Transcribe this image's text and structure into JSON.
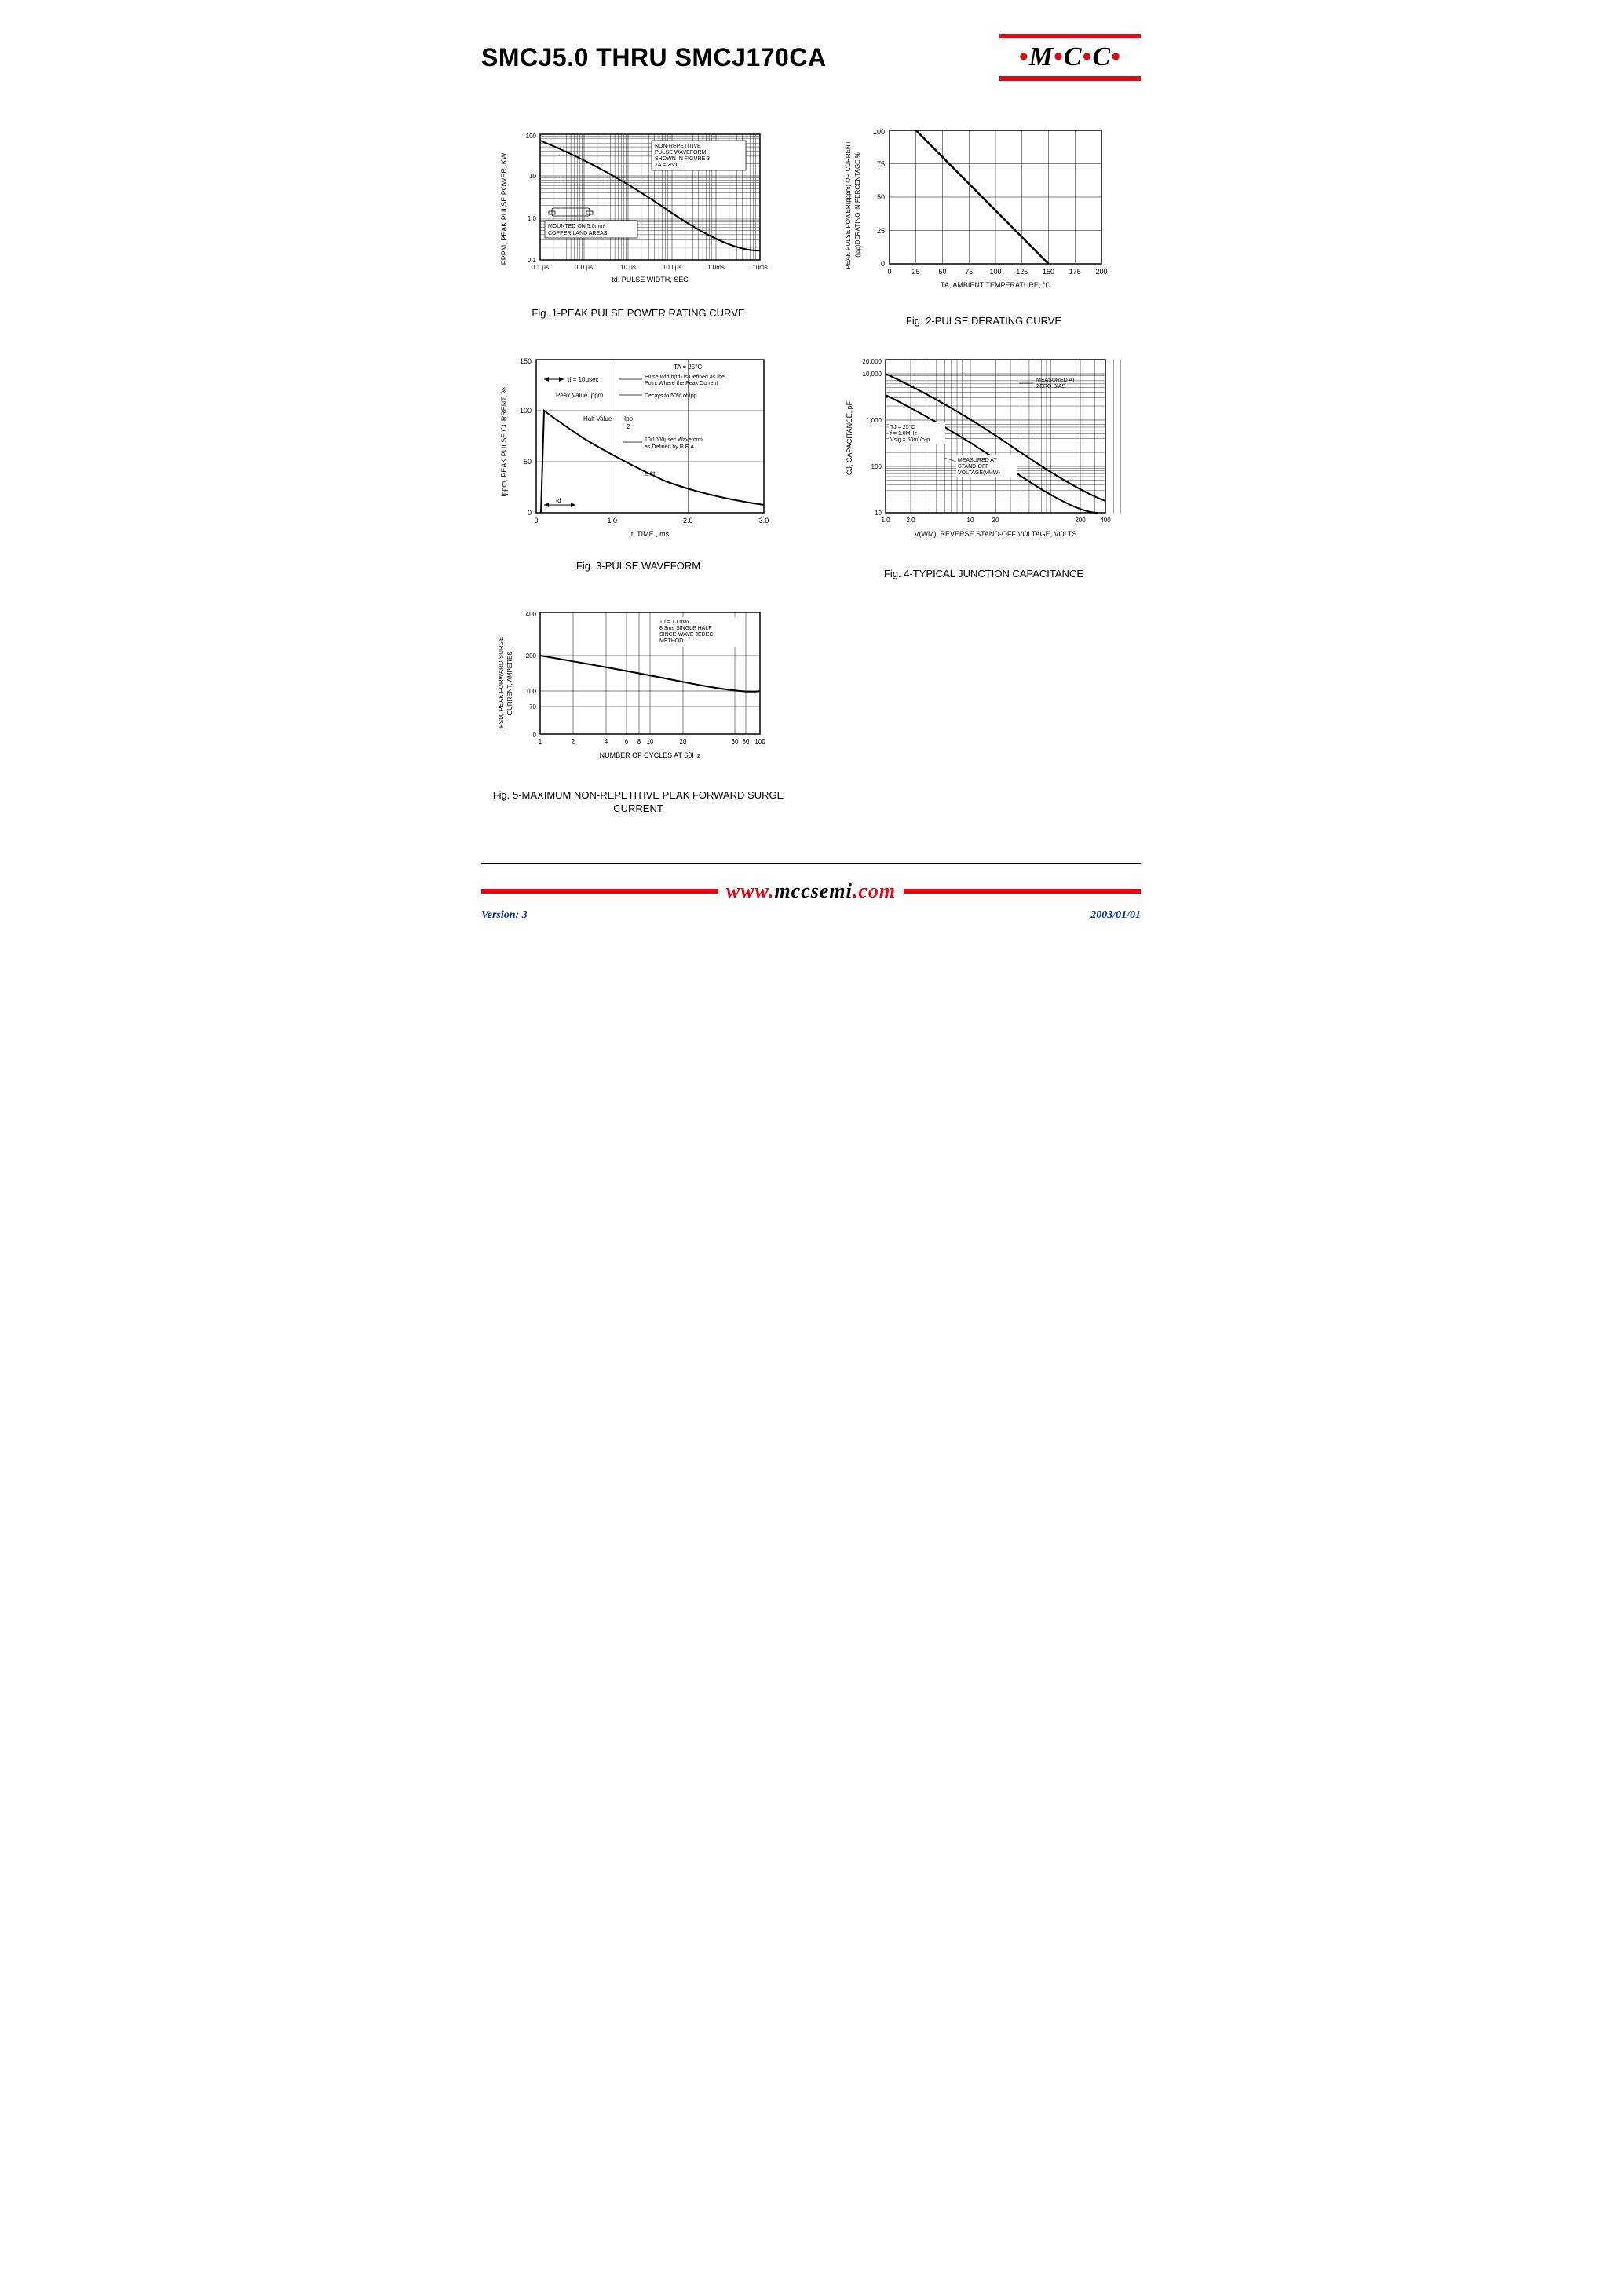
{
  "header": {
    "title": "SMCJ5.0 THRU SMCJ170CA",
    "logo_letters": [
      "M",
      "C",
      "C"
    ]
  },
  "footer": {
    "url_parts": [
      "www.",
      "mccsemi",
      ".com"
    ],
    "version": "Version: 3",
    "date": "2003/01/01"
  },
  "fig1": {
    "caption": "Fig. 1-PEAK PULSE POWER RATING CURVE",
    "ylabel": "PPPM, PEAK PULSE POWER, KW",
    "xlabel": "td, PULSE WIDTH, SEC",
    "x_ticks": [
      "0.1 μs",
      "1.0 μs",
      "10 μs",
      "100 μs",
      "1.0ms",
      "10ms"
    ],
    "y_ticks": [
      "0.1",
      "1.0",
      "10",
      "100"
    ],
    "note1": [
      "NON-REPETITIVE",
      "PULSE WAVEFORM",
      "SHOWN IN FIGURE 3",
      "TA = 25°C"
    ],
    "note2": [
      "MOUNTED ON 5.0mm²",
      "COPPER LAND AREAS"
    ],
    "curve": [
      [
        0,
        0.05
      ],
      [
        0.2,
        0.18
      ],
      [
        0.4,
        0.35
      ],
      [
        0.6,
        0.5
      ],
      [
        0.8,
        0.65
      ],
      [
        1.0,
        0.82
      ]
    ],
    "colors": {
      "line": "#000000",
      "grid": "#000000",
      "bg": "#ffffff"
    }
  },
  "fig2": {
    "caption": "Fig. 2-PULSE DERATING CURVE",
    "ylabel": "PEAK PULSE POWER(pppm) OR CURRENT (Ipp)DERATING IN PERCENTAGE %",
    "xlabel": "TA, AMBIENT TEMPERATURE, °C",
    "x_ticks": [
      "0",
      "25",
      "50",
      "75",
      "100",
      "125",
      "150",
      "175",
      "200"
    ],
    "y_ticks": [
      "0",
      "25",
      "50",
      "75",
      "100"
    ],
    "curve": [
      [
        25,
        100
      ],
      [
        150,
        0
      ]
    ],
    "colors": {
      "line": "#000000",
      "grid": "#000000",
      "bg": "#ffffff"
    }
  },
  "fig3": {
    "caption": "Fig. 3-PULSE WAVEFORM",
    "ylabel": "Ippm, PEAK PULSE CURRENT, %",
    "xlabel": "t, TIME , ms",
    "x_ticks": [
      "0",
      "1.0",
      "2.0",
      "3.0"
    ],
    "y_ticks": [
      "0",
      "50",
      "100",
      "150"
    ],
    "annotations": {
      "ta": "TA = 25°C",
      "tf": "tf = 10μsec",
      "peak": "Peak Value Ippm",
      "pw_def": [
        "Pulse Width(td) is Defined as the",
        "Point Where the Peak Current",
        "Decays to 50% of Ipp"
      ],
      "half": "Half Value -",
      "ipp2": "Ipp / 2",
      "wave": [
        "10/1000μsec Waveform",
        "as Defined by R.E.A."
      ],
      "ekt": "e-kt",
      "td": "td"
    },
    "curve": [
      [
        0.02,
        0
      ],
      [
        0.04,
        1.0
      ],
      [
        0.1,
        0.92
      ],
      [
        0.2,
        0.8
      ],
      [
        0.35,
        0.64
      ],
      [
        0.5,
        0.5
      ],
      [
        0.7,
        0.36
      ],
      [
        0.9,
        0.26
      ],
      [
        1.0,
        0.22
      ]
    ],
    "colors": {
      "line": "#000000",
      "grid": "#000000",
      "bg": "#ffffff"
    }
  },
  "fig4": {
    "caption": "Fig. 4-TYPICAL JUNCTION CAPACITANCE",
    "ylabel": "CJ, CAPACITANCE, pF",
    "xlabel": "V(WM), REVERSE STAND-OFF VOLTAGE, VOLTS",
    "x_ticks": [
      "1.0",
      "2.0",
      "10",
      "20",
      "200",
      "400"
    ],
    "y_ticks": [
      "10",
      "100",
      "1,000",
      "10,000",
      "20,000"
    ],
    "note1": [
      "MEASURED AT",
      "ZERO BIAS"
    ],
    "note2": [
      "TJ = 25°C",
      "f = 1.0MHz",
      "Vsig = 50mVp-p"
    ],
    "note3": [
      "MEASURED AT",
      "STAND-OFF",
      "VOLTAGE(VMW)"
    ],
    "curve1": [
      [
        0,
        0.12
      ],
      [
        0.3,
        0.32
      ],
      [
        0.6,
        0.58
      ],
      [
        1.0,
        0.92
      ]
    ],
    "curve2": [
      [
        0,
        0.25
      ],
      [
        0.3,
        0.48
      ],
      [
        0.6,
        0.72
      ],
      [
        1.0,
        1.0
      ]
    ],
    "colors": {
      "line": "#000000",
      "grid": "#000000",
      "bg": "#ffffff"
    }
  },
  "fig5": {
    "caption": "Fig. 5-MAXIMUM NON-REPETITIVE PEAK FORWARD SURGE CURRENT",
    "ylabel": "IFSM, PEAK FORWARD SURGE CURRENT, AMPERES",
    "xlabel": "NUMBER OF CYCLES AT 60Hz",
    "x_ticks": [
      "1",
      "2",
      "4",
      "6",
      "8",
      "10",
      "20",
      "60",
      "80",
      "100"
    ],
    "y_ticks": [
      "0",
      "70",
      "100",
      "200",
      "400"
    ],
    "note1": [
      "TJ = TJ max",
      "8.3ms SINGLE HALF",
      "SINCE-WAVE JEDEC",
      "METHOD"
    ],
    "curve": [
      [
        0,
        0.3
      ],
      [
        0.5,
        0.45
      ],
      [
        1.0,
        0.62
      ]
    ],
    "colors": {
      "line": "#000000",
      "grid": "#000000",
      "bg": "#ffffff"
    }
  }
}
